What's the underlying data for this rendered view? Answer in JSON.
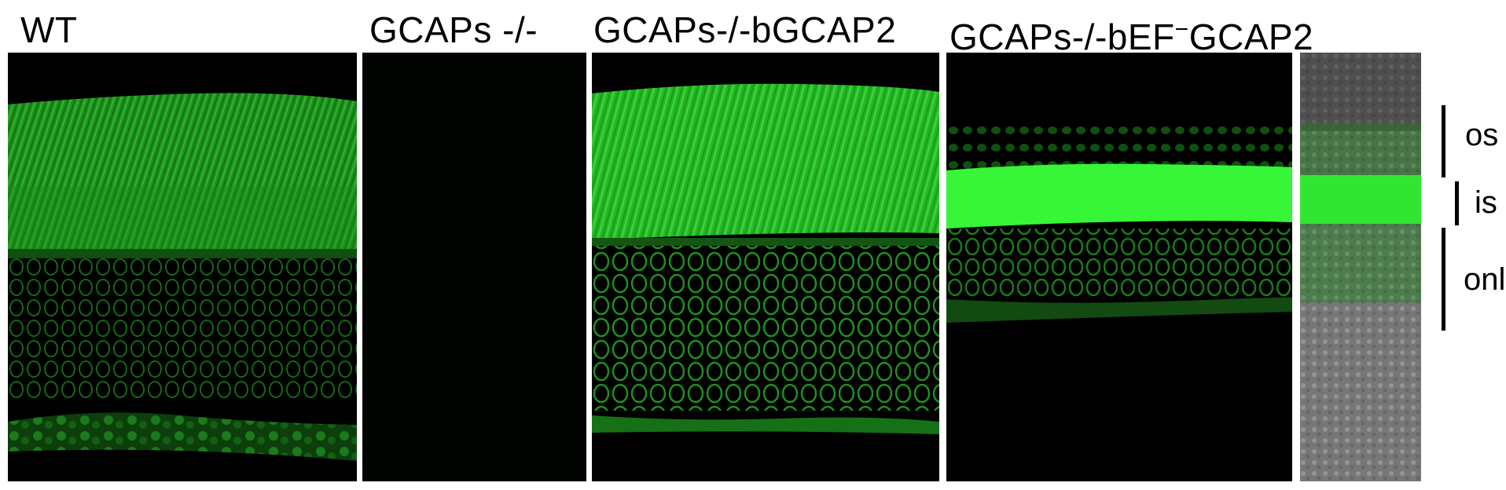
{
  "panels": [
    {
      "label": "WT"
    },
    {
      "label": "GCAPs -/-"
    },
    {
      "label": "GCAPs-/-bGCAP2"
    },
    {
      "label_prefix": "GCAPs-/-bEF",
      "label_sup": "−",
      "label_suffix": "GCAP2"
    }
  ],
  "layers": [
    {
      "label": "os"
    },
    {
      "label": "is"
    },
    {
      "label": "onl"
    }
  ],
  "colors": {
    "background": "#ffffff",
    "panel_background": "#000000",
    "fluorescence": "#2bd62b",
    "bright_band": "#38ff38",
    "brightfield": "#8a8a8a"
  }
}
